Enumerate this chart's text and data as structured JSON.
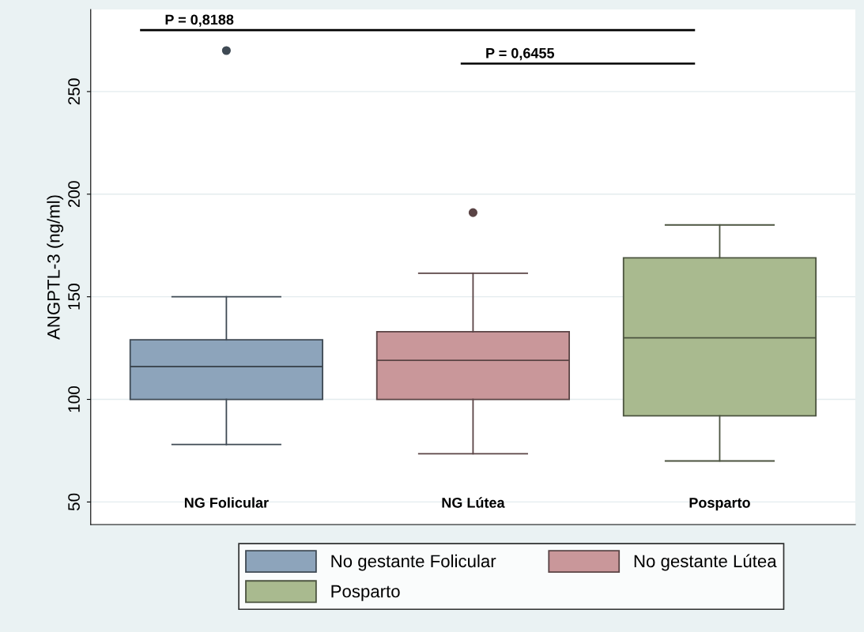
{
  "chart_data": {
    "type": "box",
    "ylabel": "ANGPTL-3 (ng/ml)",
    "categories": [
      "NG Folicular",
      "NG Lútea",
      "Posparto"
    ],
    "series": [
      {
        "name": "No gestante Folicular",
        "color": "#8da4bb",
        "boxes": [
          {
            "low": 78,
            "q1": 100,
            "median": 116,
            "q3": 129,
            "high": 150,
            "outliers": [
              270
            ]
          },
          null,
          null
        ]
      },
      {
        "name": "No gestante Lútea",
        "color": "#c9979a",
        "boxes": [
          null,
          {
            "low": 73.5,
            "q1": 100,
            "median": 119,
            "q3": 133,
            "high": 161.5,
            "outliers": [
              191
            ]
          },
          null
        ]
      },
      {
        "name": "Posparto",
        "color": "#a9ba8f",
        "boxes": [
          null,
          null,
          {
            "low": 70,
            "q1": 92,
            "median": 130,
            "q3": 169,
            "high": 185
          }
        ]
      }
    ],
    "ylim": [
      39,
      290
    ],
    "yticks": [
      50,
      100,
      150,
      200,
      250
    ],
    "grid": "y",
    "legend": "bottom",
    "annotations": [
      "P = 0,8188",
      "P = 0,6455"
    ]
  }
}
